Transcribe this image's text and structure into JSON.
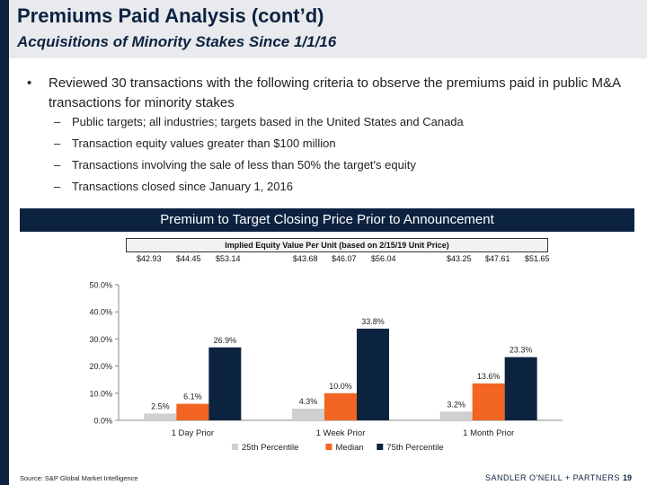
{
  "header": {
    "title": "Premiums Paid Analysis (cont’d)",
    "subtitle": "Acquisitions of Minority Stakes Since 1/1/16"
  },
  "body": {
    "bullet_symbol": "•",
    "bullet": "Reviewed 30 transactions with the following criteria to observe the premiums paid in public M&A transactions for minority stakes",
    "dash_symbol": "–",
    "subbullets": [
      "Public targets; all industries; targets based in the United States and Canada",
      "Transaction equity values greater than $100 million",
      "Transactions involving the sale of less than 50% the target's equity",
      "Transactions closed since January 1, 2016"
    ]
  },
  "banner": "Premium to Target Closing Price Prior to Announcement",
  "implied": {
    "label": "Implied Equity Value Per Unit (based on 2/15/19 Unit Price)",
    "prices": [
      "$42.93",
      "$44.45",
      "$53.14",
      "$43.68",
      "$46.07",
      "$56.04",
      "$43.25",
      "$47.61",
      "$51.65"
    ]
  },
  "chart_data": {
    "type": "bar",
    "categories": [
      "1 Day Prior",
      "1 Week Prior",
      "1 Month Prior"
    ],
    "series": [
      {
        "name": "25th Percentile",
        "values": [
          2.5,
          4.3,
          3.2
        ],
        "color": "#d0d0d0"
      },
      {
        "name": "Median",
        "values": [
          6.1,
          10.0,
          13.6
        ],
        "color": "#f26522"
      },
      {
        "name": "75th Percentile",
        "values": [
          26.9,
          33.8,
          23.3
        ],
        "color": "#0c2340"
      }
    ],
    "data_labels": [
      [
        "2.5%",
        "4.3%",
        "3.2%"
      ],
      [
        "6.1%",
        "10.0%",
        "13.6%"
      ],
      [
        "26.9%",
        "33.8%",
        "23.3%"
      ]
    ],
    "yticks": [
      "0.0%",
      "10.0%",
      "20.0%",
      "30.0%",
      "40.0%",
      "50.0%"
    ],
    "ylim": [
      0,
      50
    ],
    "legend_position": "bottom"
  },
  "footer": {
    "source": "Source: S&P Global Market Intelligence",
    "logo": "SANDLER O'NEILL + PARTNERS",
    "page": "19"
  }
}
